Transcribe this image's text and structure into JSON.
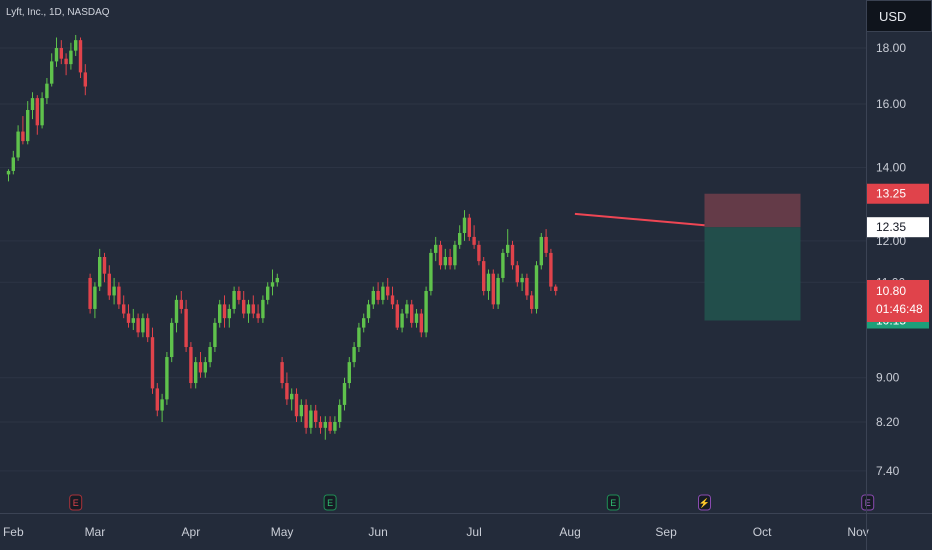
{
  "header": {
    "title": "Lyft, Inc., 1D, NASDAQ",
    "currency": "USD"
  },
  "chart_data": {
    "type": "candlestick",
    "price_ticks": [
      "18.00",
      "16.00",
      "14.00",
      "12.00",
      "11.00",
      "9.00",
      "8.20",
      "7.40"
    ],
    "price_tick_values": [
      18.0,
      16.0,
      14.0,
      12.0,
      11.0,
      9.0,
      8.2,
      7.4
    ],
    "x_ticks": [
      "Feb",
      "Mar",
      "Apr",
      "May",
      "Jun",
      "Jul",
      "Aug",
      "Sep",
      "Oct",
      "Nov"
    ],
    "tick_positions": [
      1,
      18,
      38,
      57,
      77,
      97,
      117,
      137,
      157,
      177
    ],
    "y_range": [
      6.8,
      19.1
    ],
    "scale": "log",
    "candles": [
      [
        13.8,
        13.95,
        13.6,
        13.9
      ],
      [
        13.9,
        14.5,
        13.8,
        14.3
      ],
      [
        14.3,
        15.3,
        14.2,
        15.1
      ],
      [
        15.1,
        15.6,
        14.7,
        14.8
      ],
      [
        14.8,
        16.1,
        14.7,
        15.8
      ],
      [
        15.8,
        16.4,
        15.5,
        16.2
      ],
      [
        16.2,
        16.3,
        15.0,
        15.3
      ],
      [
        15.3,
        16.4,
        15.2,
        16.2
      ],
      [
        16.2,
        16.9,
        16.0,
        16.7
      ],
      [
        16.7,
        17.8,
        16.6,
        17.5
      ],
      [
        17.5,
        18.4,
        17.3,
        18.0
      ],
      [
        18.0,
        18.3,
        17.4,
        17.6
      ],
      [
        17.6,
        17.8,
        17.0,
        17.4
      ],
      [
        17.4,
        18.2,
        17.2,
        17.9
      ],
      [
        17.9,
        18.5,
        17.7,
        18.3
      ],
      [
        18.3,
        18.4,
        16.9,
        17.1
      ],
      [
        17.1,
        17.4,
        16.3,
        16.6
      ],
      [
        11.1,
        11.2,
        10.3,
        10.4
      ],
      [
        10.4,
        11.0,
        10.2,
        10.9
      ],
      [
        10.9,
        11.8,
        10.8,
        11.6
      ],
      [
        11.6,
        11.7,
        11.0,
        11.2
      ],
      [
        11.2,
        11.4,
        10.6,
        10.7
      ],
      [
        10.7,
        11.1,
        10.5,
        10.9
      ],
      [
        10.9,
        11.0,
        10.4,
        10.5
      ],
      [
        10.5,
        10.7,
        10.2,
        10.3
      ],
      [
        10.3,
        10.5,
        10.0,
        10.1
      ],
      [
        10.1,
        10.4,
        9.95,
        10.2
      ],
      [
        10.2,
        10.3,
        9.8,
        9.9
      ],
      [
        9.9,
        10.3,
        9.8,
        10.2
      ],
      [
        10.2,
        10.3,
        9.7,
        9.8
      ],
      [
        9.8,
        10.0,
        8.7,
        8.8
      ],
      [
        8.8,
        8.9,
        8.3,
        8.4
      ],
      [
        8.4,
        8.7,
        8.2,
        8.6
      ],
      [
        8.6,
        9.5,
        8.5,
        9.4
      ],
      [
        9.4,
        10.2,
        9.3,
        10.1
      ],
      [
        10.1,
        10.7,
        9.9,
        10.6
      ],
      [
        10.6,
        10.8,
        10.3,
        10.4
      ],
      [
        10.4,
        10.6,
        9.5,
        9.6
      ],
      [
        9.6,
        9.7,
        8.8,
        8.9
      ],
      [
        8.9,
        9.4,
        8.8,
        9.3
      ],
      [
        9.3,
        9.5,
        9.0,
        9.1
      ],
      [
        9.1,
        9.4,
        9.0,
        9.3
      ],
      [
        9.3,
        9.7,
        9.2,
        9.6
      ],
      [
        9.6,
        10.2,
        9.5,
        10.1
      ],
      [
        10.1,
        10.6,
        10.0,
        10.5
      ],
      [
        10.5,
        10.7,
        10.0,
        10.2
      ],
      [
        10.2,
        10.5,
        10.0,
        10.4
      ],
      [
        10.4,
        10.9,
        10.3,
        10.8
      ],
      [
        10.8,
        10.9,
        10.5,
        10.6
      ],
      [
        10.6,
        10.8,
        10.2,
        10.3
      ],
      [
        10.3,
        10.6,
        10.1,
        10.5
      ],
      [
        10.5,
        10.7,
        10.2,
        10.3
      ],
      [
        10.3,
        10.5,
        10.1,
        10.2
      ],
      [
        10.2,
        10.7,
        10.1,
        10.6
      ],
      [
        10.6,
        11.0,
        10.5,
        10.9
      ],
      [
        10.9,
        11.3,
        10.7,
        11.0
      ],
      [
        11.0,
        11.2,
        10.9,
        11.1
      ],
      [
        9.3,
        9.4,
        8.8,
        8.9
      ],
      [
        8.9,
        9.1,
        8.5,
        8.6
      ],
      [
        8.6,
        8.8,
        8.4,
        8.7
      ],
      [
        8.7,
        8.8,
        8.2,
        8.3
      ],
      [
        8.3,
        8.6,
        8.2,
        8.5
      ],
      [
        8.5,
        8.6,
        8.0,
        8.1
      ],
      [
        8.1,
        8.5,
        8.0,
        8.4
      ],
      [
        8.4,
        8.5,
        8.1,
        8.2
      ],
      [
        8.2,
        8.3,
        8.0,
        8.1
      ],
      [
        8.1,
        8.3,
        7.9,
        8.2
      ],
      [
        8.2,
        8.3,
        8.0,
        8.05
      ],
      [
        8.05,
        8.3,
        8.0,
        8.2
      ],
      [
        8.2,
        8.6,
        8.1,
        8.5
      ],
      [
        8.5,
        9.0,
        8.4,
        8.9
      ],
      [
        8.9,
        9.4,
        8.8,
        9.3
      ],
      [
        9.3,
        9.7,
        9.2,
        9.6
      ],
      [
        9.6,
        10.1,
        9.5,
        10.0
      ],
      [
        10.0,
        10.3,
        9.9,
        10.2
      ],
      [
        10.2,
        10.6,
        10.1,
        10.5
      ],
      [
        10.5,
        10.9,
        10.4,
        10.8
      ],
      [
        10.8,
        11.0,
        10.5,
        10.6
      ],
      [
        10.6,
        11.0,
        10.5,
        10.9
      ],
      [
        10.9,
        11.1,
        10.6,
        10.7
      ],
      [
        10.7,
        10.9,
        10.4,
        10.5
      ],
      [
        10.5,
        10.6,
        9.95,
        10.0
      ],
      [
        10.0,
        10.4,
        9.9,
        10.3
      ],
      [
        10.3,
        10.6,
        10.2,
        10.5
      ],
      [
        10.5,
        10.6,
        10.0,
        10.1
      ],
      [
        10.1,
        10.4,
        10.0,
        10.3
      ],
      [
        10.3,
        10.4,
        9.8,
        9.9
      ],
      [
        9.9,
        10.9,
        9.8,
        10.8
      ],
      [
        10.8,
        11.8,
        10.7,
        11.7
      ],
      [
        11.7,
        12.1,
        11.5,
        11.9
      ],
      [
        11.9,
        12.0,
        11.3,
        11.4
      ],
      [
        11.4,
        11.8,
        11.3,
        11.6
      ],
      [
        11.6,
        11.8,
        11.3,
        11.4
      ],
      [
        11.4,
        12.0,
        11.3,
        11.9
      ],
      [
        11.9,
        12.4,
        11.8,
        12.2
      ],
      [
        12.2,
        12.8,
        12.0,
        12.6
      ],
      [
        12.6,
        12.7,
        12.0,
        12.1
      ],
      [
        12.1,
        12.4,
        11.8,
        11.9
      ],
      [
        11.9,
        12.0,
        11.4,
        11.5
      ],
      [
        11.5,
        11.6,
        10.7,
        10.8
      ],
      [
        10.8,
        11.3,
        10.6,
        11.2
      ],
      [
        11.2,
        11.3,
        10.4,
        10.5
      ],
      [
        10.5,
        11.2,
        10.4,
        11.1
      ],
      [
        11.1,
        11.8,
        11.0,
        11.7
      ],
      [
        11.7,
        12.3,
        11.6,
        11.9
      ],
      [
        11.9,
        12.0,
        11.3,
        11.4
      ],
      [
        11.4,
        11.5,
        10.9,
        11.0
      ],
      [
        11.0,
        11.2,
        10.8,
        11.1
      ],
      [
        11.1,
        11.2,
        10.6,
        10.7
      ],
      [
        10.7,
        10.8,
        10.3,
        10.4
      ],
      [
        10.4,
        11.5,
        10.3,
        11.4
      ],
      [
        11.4,
        12.2,
        11.3,
        12.1
      ],
      [
        12.1,
        12.3,
        11.6,
        11.7
      ],
      [
        11.7,
        11.8,
        10.8,
        10.9
      ],
      [
        10.9,
        10.95,
        10.7,
        10.8
      ]
    ],
    "trendline": {
      "start": [
        118,
        12.7
      ],
      "end": [
        145,
        12.4
      ]
    },
    "position": {
      "start_index": 145,
      "end_index": 165,
      "stop": 13.25,
      "entry": 12.35,
      "target": 10.15
    },
    "labels": {
      "stop": "13.25",
      "entry": "12.35",
      "last_price": "10.80",
      "countdown": "01:46:48",
      "target": "10.15"
    },
    "events": [
      {
        "glyph": "E",
        "index": 14,
        "color": "#e0434b",
        "border": "#a83239"
      },
      {
        "glyph": "E",
        "index": 67,
        "color": "#2fbf71",
        "border": "#1f8f55"
      },
      {
        "glyph": "E",
        "index": 126,
        "color": "#2fbf71",
        "border": "#1f8f55"
      },
      {
        "glyph": "⚡",
        "index": 145,
        "color": "#b86be0",
        "border": "#8a4bb0"
      },
      {
        "glyph": "E",
        "index": 179,
        "color": "#b86be0",
        "border": "#8a4bb0"
      }
    ],
    "colors": {
      "up": "#5fc24c",
      "down": "#e0434b",
      "trendline": "#ef4654",
      "stop_zone": "#6b3d4a",
      "target_zone": "#22524e",
      "entry_label_bg": "#ffffff",
      "target_label_bg": "#1e9f7a",
      "grid": "#2c3444"
    }
  }
}
